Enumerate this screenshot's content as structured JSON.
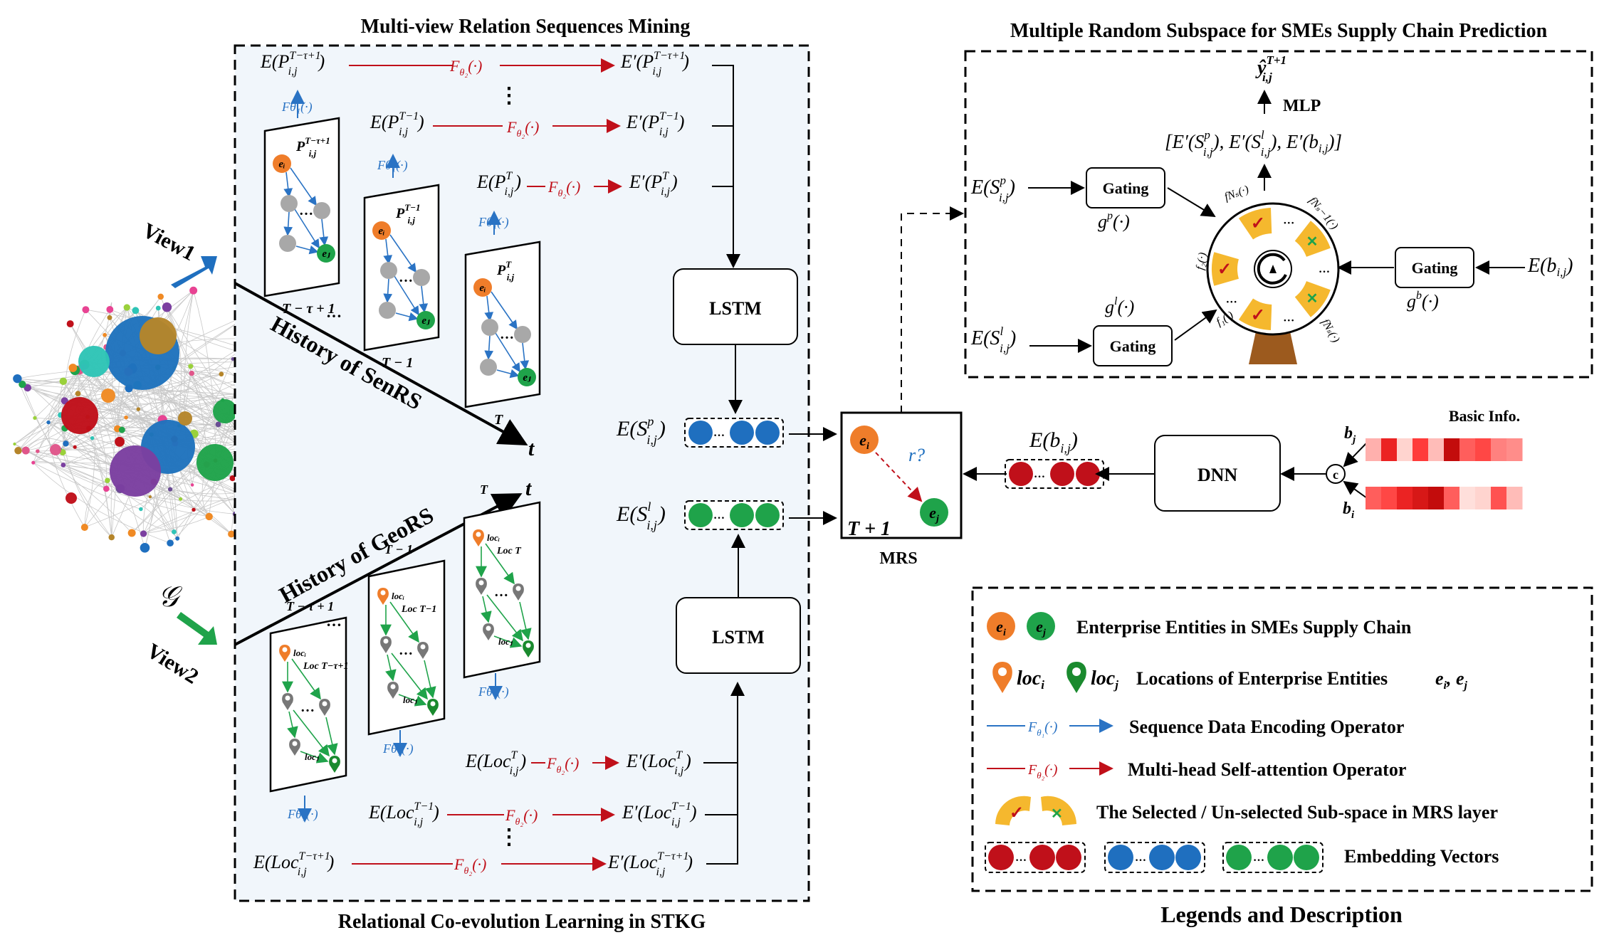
{
  "titles": {
    "mining": "Multi-view Relation Sequences Mining",
    "coevolution": "Relational Co-evolution Learning in STKG",
    "subspace": "Multiple Random Subspace for SMEs Supply Chain Prediction",
    "legend": "Legends and Description"
  },
  "views": {
    "view1": "View1",
    "view2": "View2",
    "graph": "𝒢"
  },
  "axes": {
    "senrs": "History of SenRS",
    "geors": "History of GeoRS",
    "t": "t"
  },
  "blocks": {
    "lstm_top": "LSTM",
    "lstm_bottom": "LSTM",
    "mrs": "MRS",
    "dnn": "DNN",
    "mlp": "MLP",
    "gating_p": "Gating",
    "gating_l": "Gating",
    "gating_b": "Gating",
    "basic_info": "Basic Info."
  },
  "senrs_frames": [
    {
      "sub": "T − τ + 1",
      "label": "P"
    },
    {
      "sub": "T − 1",
      "label": "P"
    },
    {
      "sub": "T",
      "label": "P"
    }
  ],
  "geors_frames": [
    {
      "sub": "T − τ + 1",
      "label": "Loc"
    },
    {
      "sub": "T − 1",
      "label": "Loc"
    },
    {
      "sub": "T",
      "label": "Loc"
    }
  ],
  "mrs_labels": {
    "r": "r?",
    "t1": "T + 1"
  },
  "legend_items": [
    {
      "icon": "entity",
      "text": "Enterprise Entities in SMEs Supply Chain"
    },
    {
      "icon": "location",
      "text": "Locations of Enterprise Entities"
    },
    {
      "icon": "blue-arrow",
      "text": "Sequence Data Encoding Operator"
    },
    {
      "icon": "red-arrow",
      "text": "Multi-head Self-attention Operator"
    },
    {
      "icon": "subspace",
      "text": "The Selected / Un-selected Sub-space in MRS layer"
    },
    {
      "icon": "vectors",
      "text": "Embedding Vectors"
    }
  ],
  "colors": {
    "blue": "#1f6fbf",
    "green": "#1fa34a",
    "red": "#c0101a",
    "orange": "#ef7d2a",
    "gold": "#f5b82e",
    "darkred": "#b22222",
    "arrowblue": "#2a73c4"
  },
  "heat_bj": [
    0.25,
    0.85,
    0.1,
    0.75,
    0.2,
    0.95,
    0.6,
    0.7,
    0.45,
    0.4
  ],
  "heat_bi": [
    0.6,
    0.7,
    0.85,
    0.9,
    0.95,
    0.6,
    0.05,
    0.1,
    0.65,
    0.2
  ]
}
